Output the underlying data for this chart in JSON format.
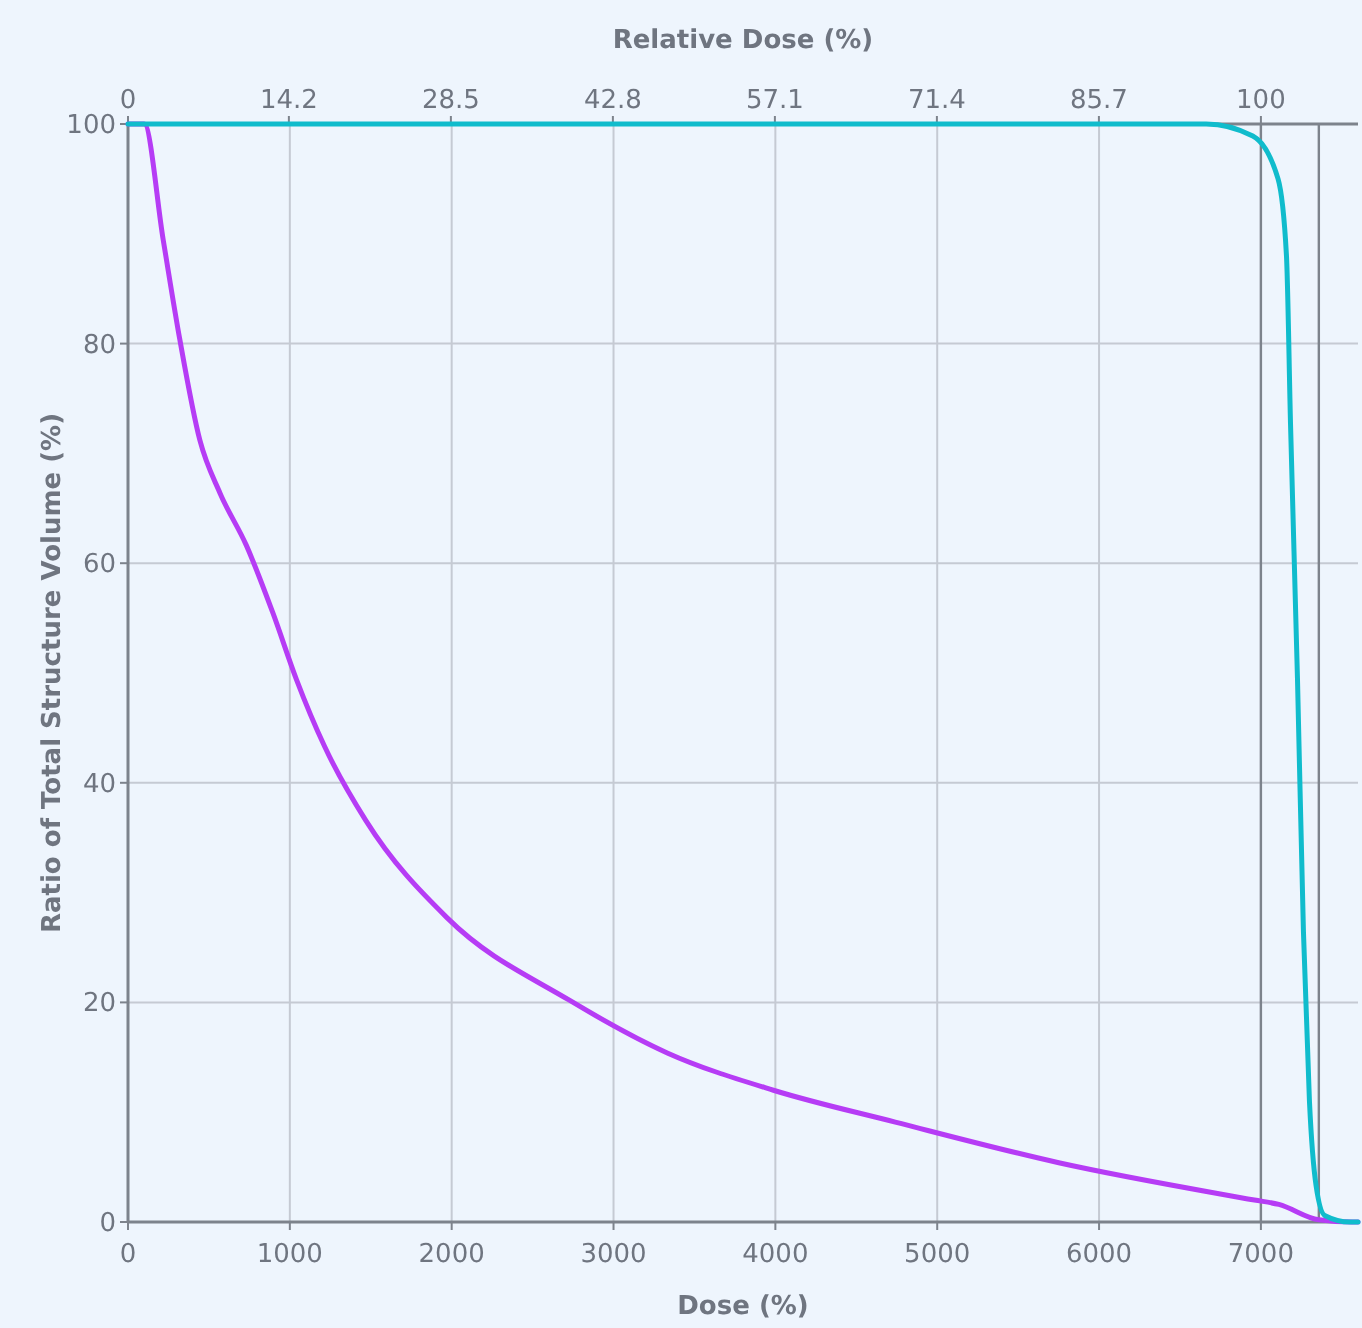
{
  "chart_data": {
    "type": "line",
    "xlabel": "Dose (%)",
    "x2label": "Relative Dose (%)",
    "ylabel": "Ratio of Total Structure Volume (%)",
    "xlim": [
      0,
      7600
    ],
    "xticks": [
      0,
      1000,
      2000,
      3000,
      4000,
      5000,
      6000,
      7000
    ],
    "x2lim": [
      0,
      108.57
    ],
    "x2ticks": [
      0,
      14.2,
      28.5,
      42.8,
      57.1,
      71.4,
      85.7,
      100
    ],
    "ylim": [
      0,
      100
    ],
    "yticks": [
      0,
      20,
      40,
      60,
      80,
      100
    ],
    "grid": true,
    "marker": "none",
    "line_style": "solid",
    "ref_lines": [
      {
        "axis": "x",
        "value": 7000,
        "color": "#7d838c"
      },
      {
        "axis": "x",
        "value": 7358,
        "color": "#7d838c"
      }
    ],
    "series": [
      {
        "color": "#b63cf5",
        "x": [
          0,
          100,
          218,
          321,
          444,
          568,
          732,
          897,
          1041,
          1215,
          1468,
          1972,
          2727,
          3332,
          3988,
          4741,
          5751,
          6960,
          7111,
          7358,
          7565,
          7600
        ],
        "values": [
          100,
          100,
          89.4,
          80.3,
          71.2,
          66.4,
          61.6,
          55.4,
          49.4,
          43.3,
          36.6,
          27.7,
          20.2,
          15.4,
          12.0,
          9.1,
          5.4,
          2.0,
          1.6,
          0.2,
          0,
          0
        ]
      },
      {
        "color": "#10bccc",
        "x": [
          0,
          6662,
          6950,
          7106,
          7158,
          7183,
          7226,
          7263,
          7300,
          7341,
          7394,
          7551,
          7600
        ],
        "values": [
          100,
          100,
          98.9,
          95,
          88,
          72.7,
          49.5,
          26.4,
          11,
          3.3,
          0.6,
          0,
          0
        ]
      }
    ]
  }
}
